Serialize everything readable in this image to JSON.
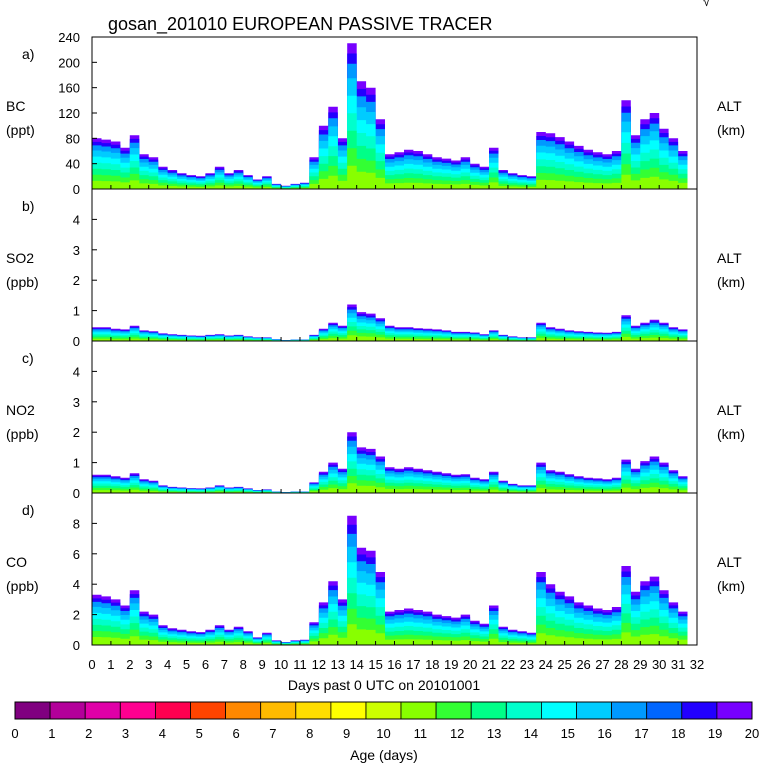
{
  "title": "gosan_201010 EUROPEAN PASSIVE TRACER",
  "corner_mark": "√",
  "x_axis": {
    "label": "Days past 0 UTC on 20101001",
    "range": [
      0,
      32
    ],
    "ticks": [
      "0",
      "1",
      "2",
      "3",
      "4",
      "5",
      "6",
      "7",
      "8",
      "9",
      "10",
      "11",
      "12",
      "13",
      "14",
      "15",
      "16",
      "17",
      "18",
      "19",
      "20",
      "21",
      "22",
      "23",
      "24",
      "25",
      "26",
      "27",
      "28",
      "29",
      "30",
      "31",
      "32"
    ]
  },
  "colorbar": {
    "label": "Age (days)",
    "ticks": [
      "0",
      "1",
      "2",
      "3",
      "4",
      "5",
      "6",
      "7",
      "8",
      "9",
      "10",
      "11",
      "12",
      "13",
      "14",
      "15",
      "16",
      "17",
      "18",
      "19",
      "20"
    ],
    "colors": [
      "#800080",
      "#b3009a",
      "#e000a8",
      "#ff0090",
      "#ff0050",
      "#ff4400",
      "#ff8800",
      "#ffbb00",
      "#ffdd00",
      "#ffff00",
      "#ccff00",
      "#88ff00",
      "#33ff33",
      "#00ff88",
      "#00ffcc",
      "#00ffff",
      "#00ccff",
      "#0099ff",
      "#0066ff",
      "#2200ff",
      "#7700ff"
    ]
  },
  "chart_data": [
    {
      "type": "area",
      "panel": "a)",
      "species": "BC",
      "unit": "(ppt)",
      "right_label": "ALT",
      "right_unit": "(km)",
      "ylim": [
        0,
        240
      ],
      "yticks": [
        "0",
        "40",
        "80",
        "120",
        "160",
        "200",
        "240"
      ],
      "x": [
        0,
        0.5,
        1,
        1.5,
        2,
        2.5,
        3,
        3.5,
        4,
        4.5,
        5,
        5.5,
        6,
        6.5,
        7,
        7.5,
        8,
        8.5,
        9,
        9.5,
        10,
        10.5,
        11,
        11.5,
        12,
        12.5,
        13,
        13.5,
        14,
        14.5,
        15,
        15.5,
        16,
        16.5,
        17,
        17.5,
        18,
        18.5,
        19,
        19.5,
        20,
        20.5,
        21,
        21.5,
        22,
        22.5,
        23,
        23.5,
        24,
        24.5,
        25,
        25.5,
        26,
        26.5,
        27,
        27.5,
        28,
        28.5,
        29,
        29.5,
        30,
        30.5,
        31
      ],
      "values": [
        80,
        78,
        75,
        65,
        85,
        55,
        50,
        35,
        30,
        25,
        22,
        20,
        25,
        35,
        25,
        30,
        22,
        15,
        20,
        8,
        5,
        8,
        10,
        50,
        100,
        130,
        80,
        230,
        170,
        160,
        110,
        55,
        58,
        62,
        60,
        55,
        50,
        48,
        45,
        50,
        40,
        35,
        65,
        30,
        25,
        22,
        20,
        90,
        88,
        82,
        75,
        68,
        62,
        58,
        55,
        60,
        140,
        85,
        110,
        120,
        95,
        80,
        60
      ]
    },
    {
      "type": "area",
      "panel": "b)",
      "species": "SO2",
      "unit": "(ppb)",
      "right_label": "ALT",
      "right_unit": "(km)",
      "ylim": [
        0,
        5
      ],
      "yticks": [
        "0",
        "1",
        "2",
        "3",
        "4"
      ],
      "x": [
        0,
        0.5,
        1,
        1.5,
        2,
        2.5,
        3,
        3.5,
        4,
        4.5,
        5,
        5.5,
        6,
        6.5,
        7,
        7.5,
        8,
        8.5,
        9,
        9.5,
        10,
        10.5,
        11,
        11.5,
        12,
        12.5,
        13,
        13.5,
        14,
        14.5,
        15,
        15.5,
        16,
        16.5,
        17,
        17.5,
        18,
        18.5,
        19,
        19.5,
        20,
        20.5,
        21,
        21.5,
        22,
        22.5,
        23,
        23.5,
        24,
        24.5,
        25,
        25.5,
        26,
        26.5,
        27,
        27.5,
        28,
        28.5,
        29,
        29.5,
        30,
        30.5,
        31
      ],
      "values": [
        0.45,
        0.45,
        0.4,
        0.38,
        0.5,
        0.35,
        0.32,
        0.25,
        0.22,
        0.2,
        0.18,
        0.17,
        0.2,
        0.22,
        0.18,
        0.2,
        0.15,
        0.12,
        0.12,
        0.06,
        0.03,
        0.05,
        0.05,
        0.2,
        0.4,
        0.6,
        0.5,
        1.2,
        0.95,
        0.9,
        0.75,
        0.5,
        0.45,
        0.45,
        0.42,
        0.4,
        0.38,
        0.35,
        0.3,
        0.3,
        0.28,
        0.22,
        0.35,
        0.2,
        0.15,
        0.12,
        0.12,
        0.6,
        0.45,
        0.4,
        0.35,
        0.32,
        0.3,
        0.28,
        0.27,
        0.3,
        0.85,
        0.5,
        0.6,
        0.7,
        0.6,
        0.45,
        0.38
      ]
    },
    {
      "type": "area",
      "panel": "c)",
      "species": "NO2",
      "unit": "(ppb)",
      "right_label": "ALT",
      "right_unit": "(km)",
      "ylim": [
        0,
        5
      ],
      "yticks": [
        "0",
        "1",
        "2",
        "3",
        "4"
      ],
      "x": [
        0,
        0.5,
        1,
        1.5,
        2,
        2.5,
        3,
        3.5,
        4,
        4.5,
        5,
        5.5,
        6,
        6.5,
        7,
        7.5,
        8,
        8.5,
        9,
        9.5,
        10,
        10.5,
        11,
        11.5,
        12,
        12.5,
        13,
        13.5,
        14,
        14.5,
        15,
        15.5,
        16,
        16.5,
        17,
        17.5,
        18,
        18.5,
        19,
        19.5,
        20,
        20.5,
        21,
        21.5,
        22,
        22.5,
        23,
        23.5,
        24,
        24.5,
        25,
        25.5,
        26,
        26.5,
        27,
        27.5,
        28,
        28.5,
        29,
        29.5,
        30,
        30.5,
        31
      ],
      "values": [
        0.6,
        0.6,
        0.55,
        0.5,
        0.65,
        0.45,
        0.4,
        0.25,
        0.2,
        0.18,
        0.16,
        0.15,
        0.18,
        0.25,
        0.18,
        0.2,
        0.15,
        0.1,
        0.12,
        0.05,
        0.03,
        0.05,
        0.05,
        0.35,
        0.7,
        1.0,
        0.8,
        2.0,
        1.5,
        1.45,
        1.2,
        0.85,
        0.8,
        0.85,
        0.8,
        0.75,
        0.7,
        0.65,
        0.6,
        0.62,
        0.5,
        0.45,
        0.7,
        0.4,
        0.3,
        0.25,
        0.25,
        1.0,
        0.75,
        0.7,
        0.62,
        0.55,
        0.5,
        0.48,
        0.45,
        0.5,
        1.1,
        0.8,
        1.05,
        1.2,
        1.0,
        0.75,
        0.55
      ]
    },
    {
      "type": "area",
      "panel": "d)",
      "species": "CO",
      "unit": "(ppb)",
      "right_label": "ALT",
      "right_unit": "(km)",
      "ylim": [
        0,
        10
      ],
      "yticks": [
        "0",
        "2",
        "4",
        "6",
        "8"
      ],
      "x": [
        0,
        0.5,
        1,
        1.5,
        2,
        2.5,
        3,
        3.5,
        4,
        4.5,
        5,
        5.5,
        6,
        6.5,
        7,
        7.5,
        8,
        8.5,
        9,
        9.5,
        10,
        10.5,
        11,
        11.5,
        12,
        12.5,
        13,
        13.5,
        14,
        14.5,
        15,
        15.5,
        16,
        16.5,
        17,
        17.5,
        18,
        18.5,
        19,
        19.5,
        20,
        20.5,
        21,
        21.5,
        22,
        22.5,
        23,
        23.5,
        24,
        24.5,
        25,
        25.5,
        26,
        26.5,
        27,
        27.5,
        28,
        28.5,
        29,
        29.5,
        30,
        30.5,
        31
      ],
      "values": [
        3.3,
        3.2,
        3.0,
        2.6,
        3.6,
        2.2,
        2.0,
        1.3,
        1.1,
        1.0,
        0.9,
        0.85,
        1.0,
        1.3,
        1.0,
        1.2,
        0.9,
        0.5,
        0.8,
        0.3,
        0.2,
        0.3,
        0.35,
        1.5,
        2.8,
        4.2,
        3.0,
        8.5,
        6.4,
        6.2,
        4.8,
        2.2,
        2.3,
        2.4,
        2.3,
        2.2,
        2.0,
        1.9,
        1.8,
        2.0,
        1.6,
        1.4,
        2.6,
        1.2,
        1.0,
        0.9,
        0.8,
        4.8,
        4.0,
        3.5,
        3.2,
        2.8,
        2.6,
        2.4,
        2.3,
        2.5,
        5.2,
        3.5,
        4.2,
        4.5,
        3.6,
        2.8,
        2.2
      ]
    }
  ]
}
